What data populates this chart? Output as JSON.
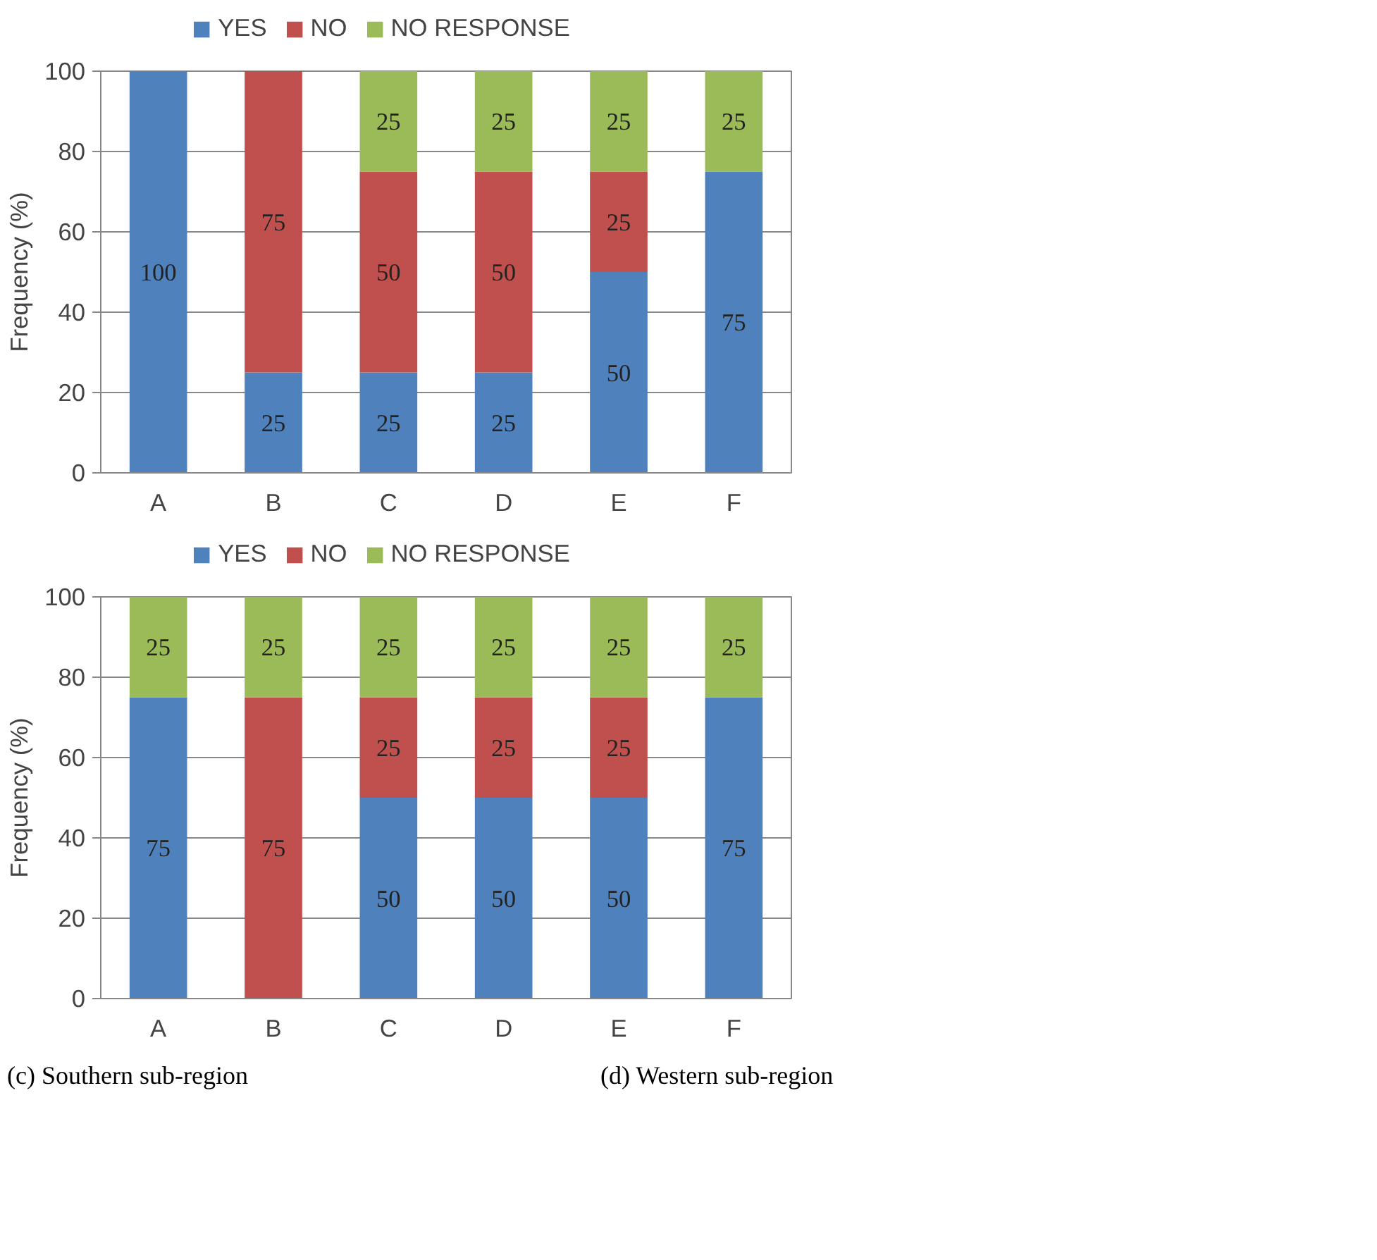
{
  "chart_data": [
    {
      "type": "bar",
      "stacked": true,
      "ylabel": "Frequency (%)",
      "categories": [
        "A",
        "B",
        "C",
        "D",
        "E",
        "F"
      ],
      "ylim": [
        0,
        100
      ],
      "yticks": [
        0,
        20,
        40,
        60,
        80,
        100
      ],
      "grid": "y",
      "legend": "top",
      "series": [
        {
          "name": "YES",
          "color": "#4f81bd",
          "values": [
            100,
            25,
            25,
            25,
            50,
            75
          ],
          "value_labels": [
            "100",
            "25",
            "25",
            "25",
            "50",
            "75"
          ]
        },
        {
          "name": "NO",
          "color": "#c0504d",
          "values": [
            0,
            75,
            50,
            50,
            25,
            0
          ],
          "value_labels": [
            null,
            "75",
            "50",
            "50",
            "25",
            null
          ]
        },
        {
          "name": "NO RESPONSE",
          "color": "#9bbb59",
          "values": [
            0,
            0,
            25,
            25,
            25,
            25
          ],
          "value_labels": [
            null,
            null,
            "25",
            "25",
            "25",
            "25"
          ]
        }
      ]
    },
    {
      "type": "bar",
      "stacked": true,
      "ylabel": "Frequency (%)",
      "categories": [
        "A",
        "B",
        "C",
        "D",
        "E",
        "F"
      ],
      "ylim": [
        0,
        100
      ],
      "yticks": [
        0,
        20,
        40,
        60,
        80,
        100
      ],
      "grid": "y",
      "legend": "top",
      "series": [
        {
          "name": "YES",
          "color": "#4f81bd",
          "values": [
            75,
            0,
            50,
            50,
            50,
            75
          ],
          "value_labels": [
            "75",
            null,
            "50",
            "50",
            "50",
            "75"
          ]
        },
        {
          "name": "NO",
          "color": "#c0504d",
          "values": [
            0,
            75,
            25,
            25,
            25,
            0
          ],
          "value_labels": [
            null,
            "75",
            "25",
            "25",
            "25",
            null
          ]
        },
        {
          "name": "NO RESPONSE",
          "color": "#9bbb59",
          "values": [
            25,
            25,
            25,
            25,
            25,
            25
          ],
          "value_labels": [
            "25",
            "25",
            "25",
            "25",
            "25",
            "25"
          ]
        }
      ],
      "annotations": [
        "(c) Southern sub-region",
        "(d) Western sub-region"
      ]
    }
  ]
}
